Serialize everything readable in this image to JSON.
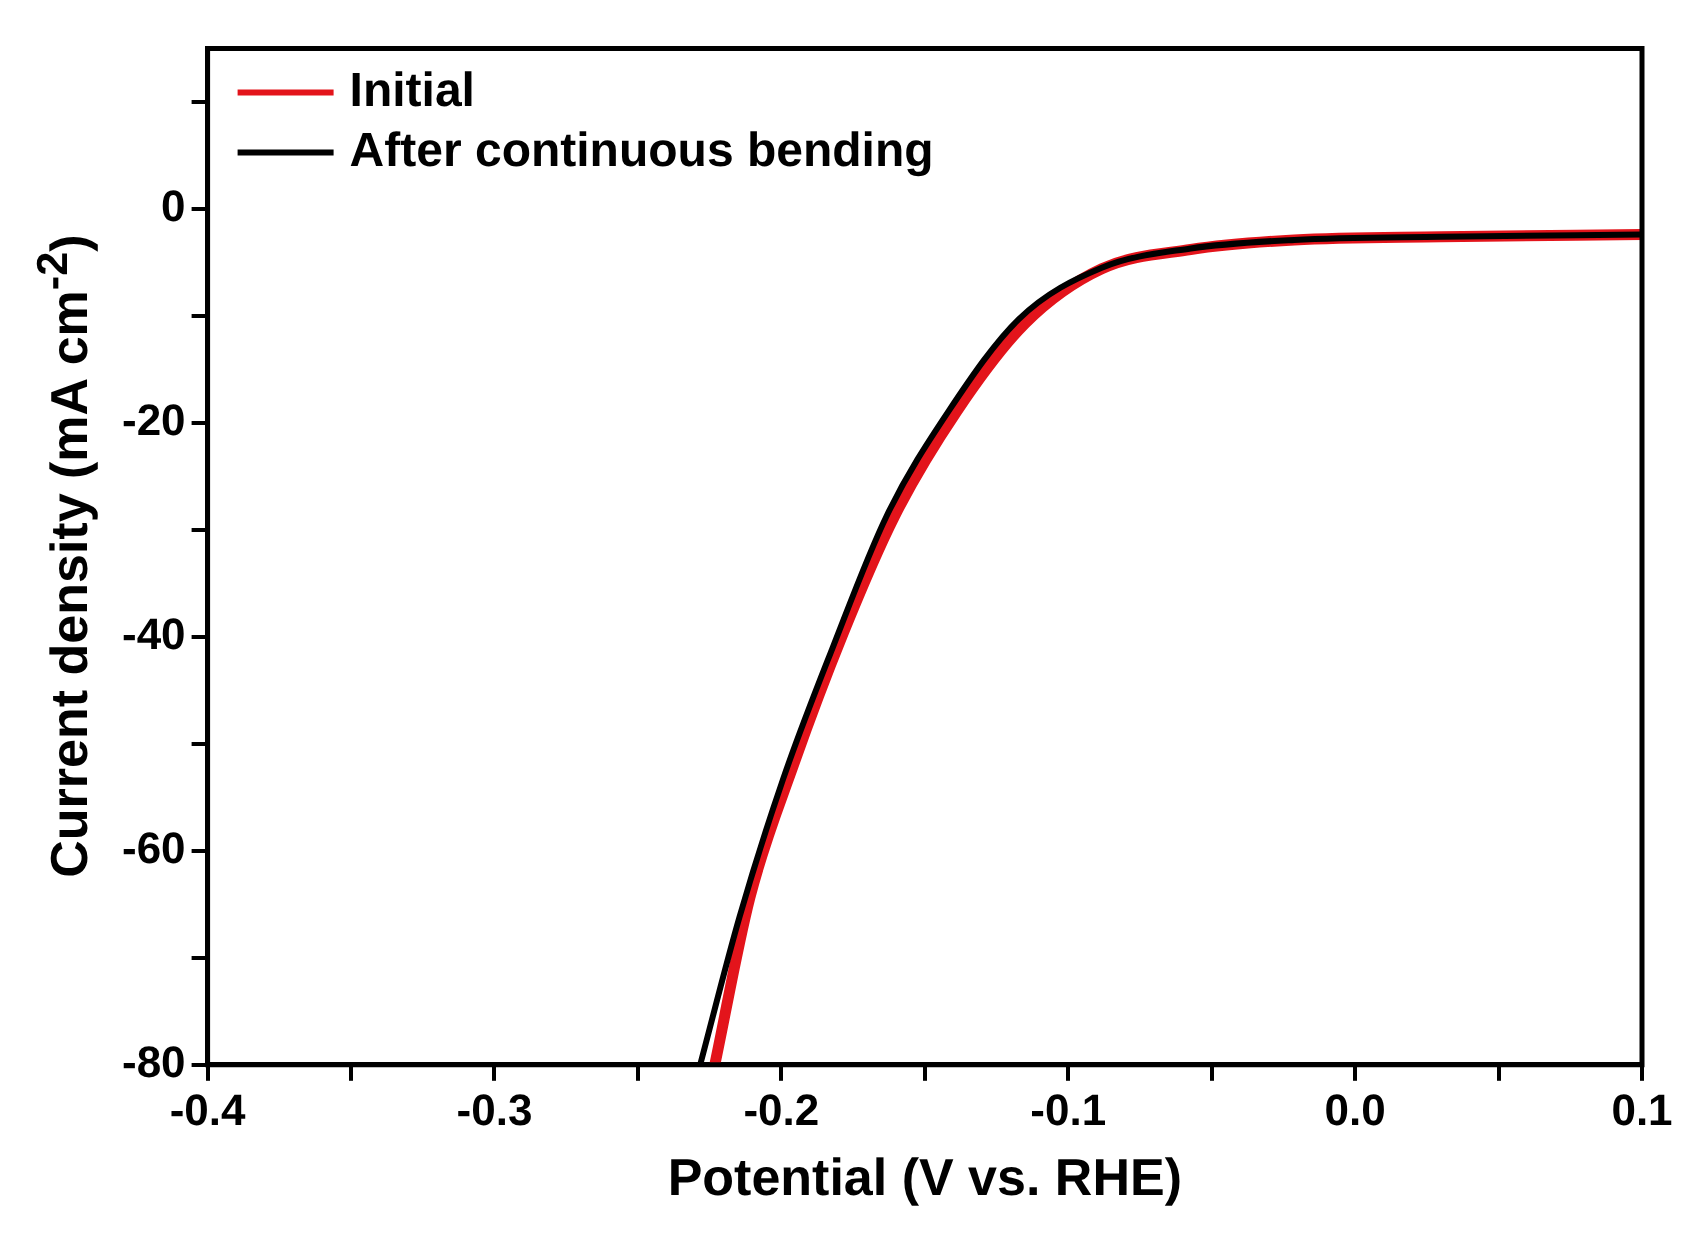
{
  "chart_data": {
    "type": "line",
    "xlabel": "Potential (V vs. RHE)",
    "ylabel": "Current density (mA cm$^{-2}$)",
    "xlim": [
      -0.4,
      0.1
    ],
    "xticks": [
      -0.4,
      {
        "value": -0.35,
        "label": null
      },
      -0.3,
      {
        "value": -0.25,
        "label": null
      },
      -0.2,
      {
        "value": -0.15,
        "label": null
      },
      -0.1,
      {
        "value": -0.05,
        "label": null
      },
      {
        "value": 0,
        "label": "0.0"
      },
      {
        "value": 0.05,
        "label": null
      },
      0.1
    ],
    "ylim": [
      -80,
      15
    ],
    "yticks": [
      -80,
      {
        "value": -70,
        "label": null
      },
      -60,
      {
        "value": -50,
        "label": null
      },
      -40,
      {
        "value": -30,
        "label": null
      },
      -20,
      {
        "value": -10,
        "label": null
      },
      0,
      {
        "value": 10,
        "label": null
      }
    ],
    "grid": false,
    "legend": "top left",
    "marker": "none",
    "line_style": "solid",
    "series": [
      {
        "name": "Initial",
        "color": "#e3141b",
        "x": [
          -0.2232,
          -0.211,
          -0.1958,
          -0.1785,
          -0.1605,
          -0.1388,
          -0.115,
          -0.0883,
          -0.0573,
          -0.0212,
          0.03,
          0.1
        ],
        "values": [
          -80,
          -64.4,
          -52,
          -39.7,
          -28.7,
          -18.9,
          -10.7,
          -5.6,
          -3.8,
          -2.9,
          -2.6,
          -2.4
        ]
      },
      {
        "name": "After continuous bending",
        "color": "#000000",
        "x": [
          -0.2283,
          -0.2146,
          -0.1994,
          -0.1821,
          -0.1633,
          -0.1417,
          -0.1172,
          -0.0883,
          -0.0573,
          -0.0212,
          0.03,
          0.1
        ],
        "values": [
          -80,
          -66.2,
          -53.3,
          -41,
          -28.7,
          -18.9,
          -10.3,
          -5.5,
          -3.7,
          -2.9,
          -2.6,
          -2.4
        ]
      }
    ]
  }
}
